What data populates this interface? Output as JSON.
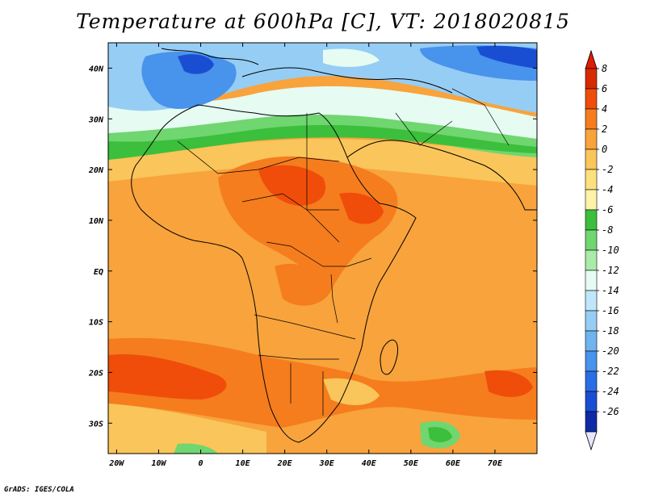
{
  "title": "Temperature at 600hPa [C], VT: 2018020815",
  "credit": "GrADS: IGES/COLA",
  "map": {
    "region": "Africa",
    "variable": "Temperature at 600hPa",
    "units": "C",
    "lon_range": [
      -22,
      80
    ],
    "lat_range": [
      -36,
      45
    ],
    "lon_ticks": [
      "20W",
      "10W",
      "0",
      "10E",
      "20E",
      "30E",
      "40E",
      "50E",
      "60E",
      "70E"
    ],
    "lat_ticks": [
      "40N",
      "30N",
      "20N",
      "10N",
      "EQ",
      "10S",
      "20S",
      "30S"
    ]
  },
  "colorbar": {
    "labels": [
      "8",
      "6",
      "4",
      "2",
      "0",
      "-2",
      "-4",
      "-6",
      "-8",
      "-10",
      "-12",
      "-14",
      "-16",
      "-18",
      "-20",
      "-22",
      "-24",
      "-26"
    ],
    "colors": [
      "#d62a00",
      "#f04d0a",
      "#f57d1e",
      "#f8a33c",
      "#fac55a",
      "#fde07e",
      "#fdf2a8",
      "#3cbf3c",
      "#70d670",
      "#a8eca8",
      "#e6fbf2",
      "#bfe6fa",
      "#96cdf5",
      "#6fb4f0",
      "#4893eb",
      "#2a6ee6",
      "#1a4ed2",
      "#0f2aa6"
    ],
    "top_color": "#e01c00",
    "bottom_color": "#e6e6ff"
  }
}
